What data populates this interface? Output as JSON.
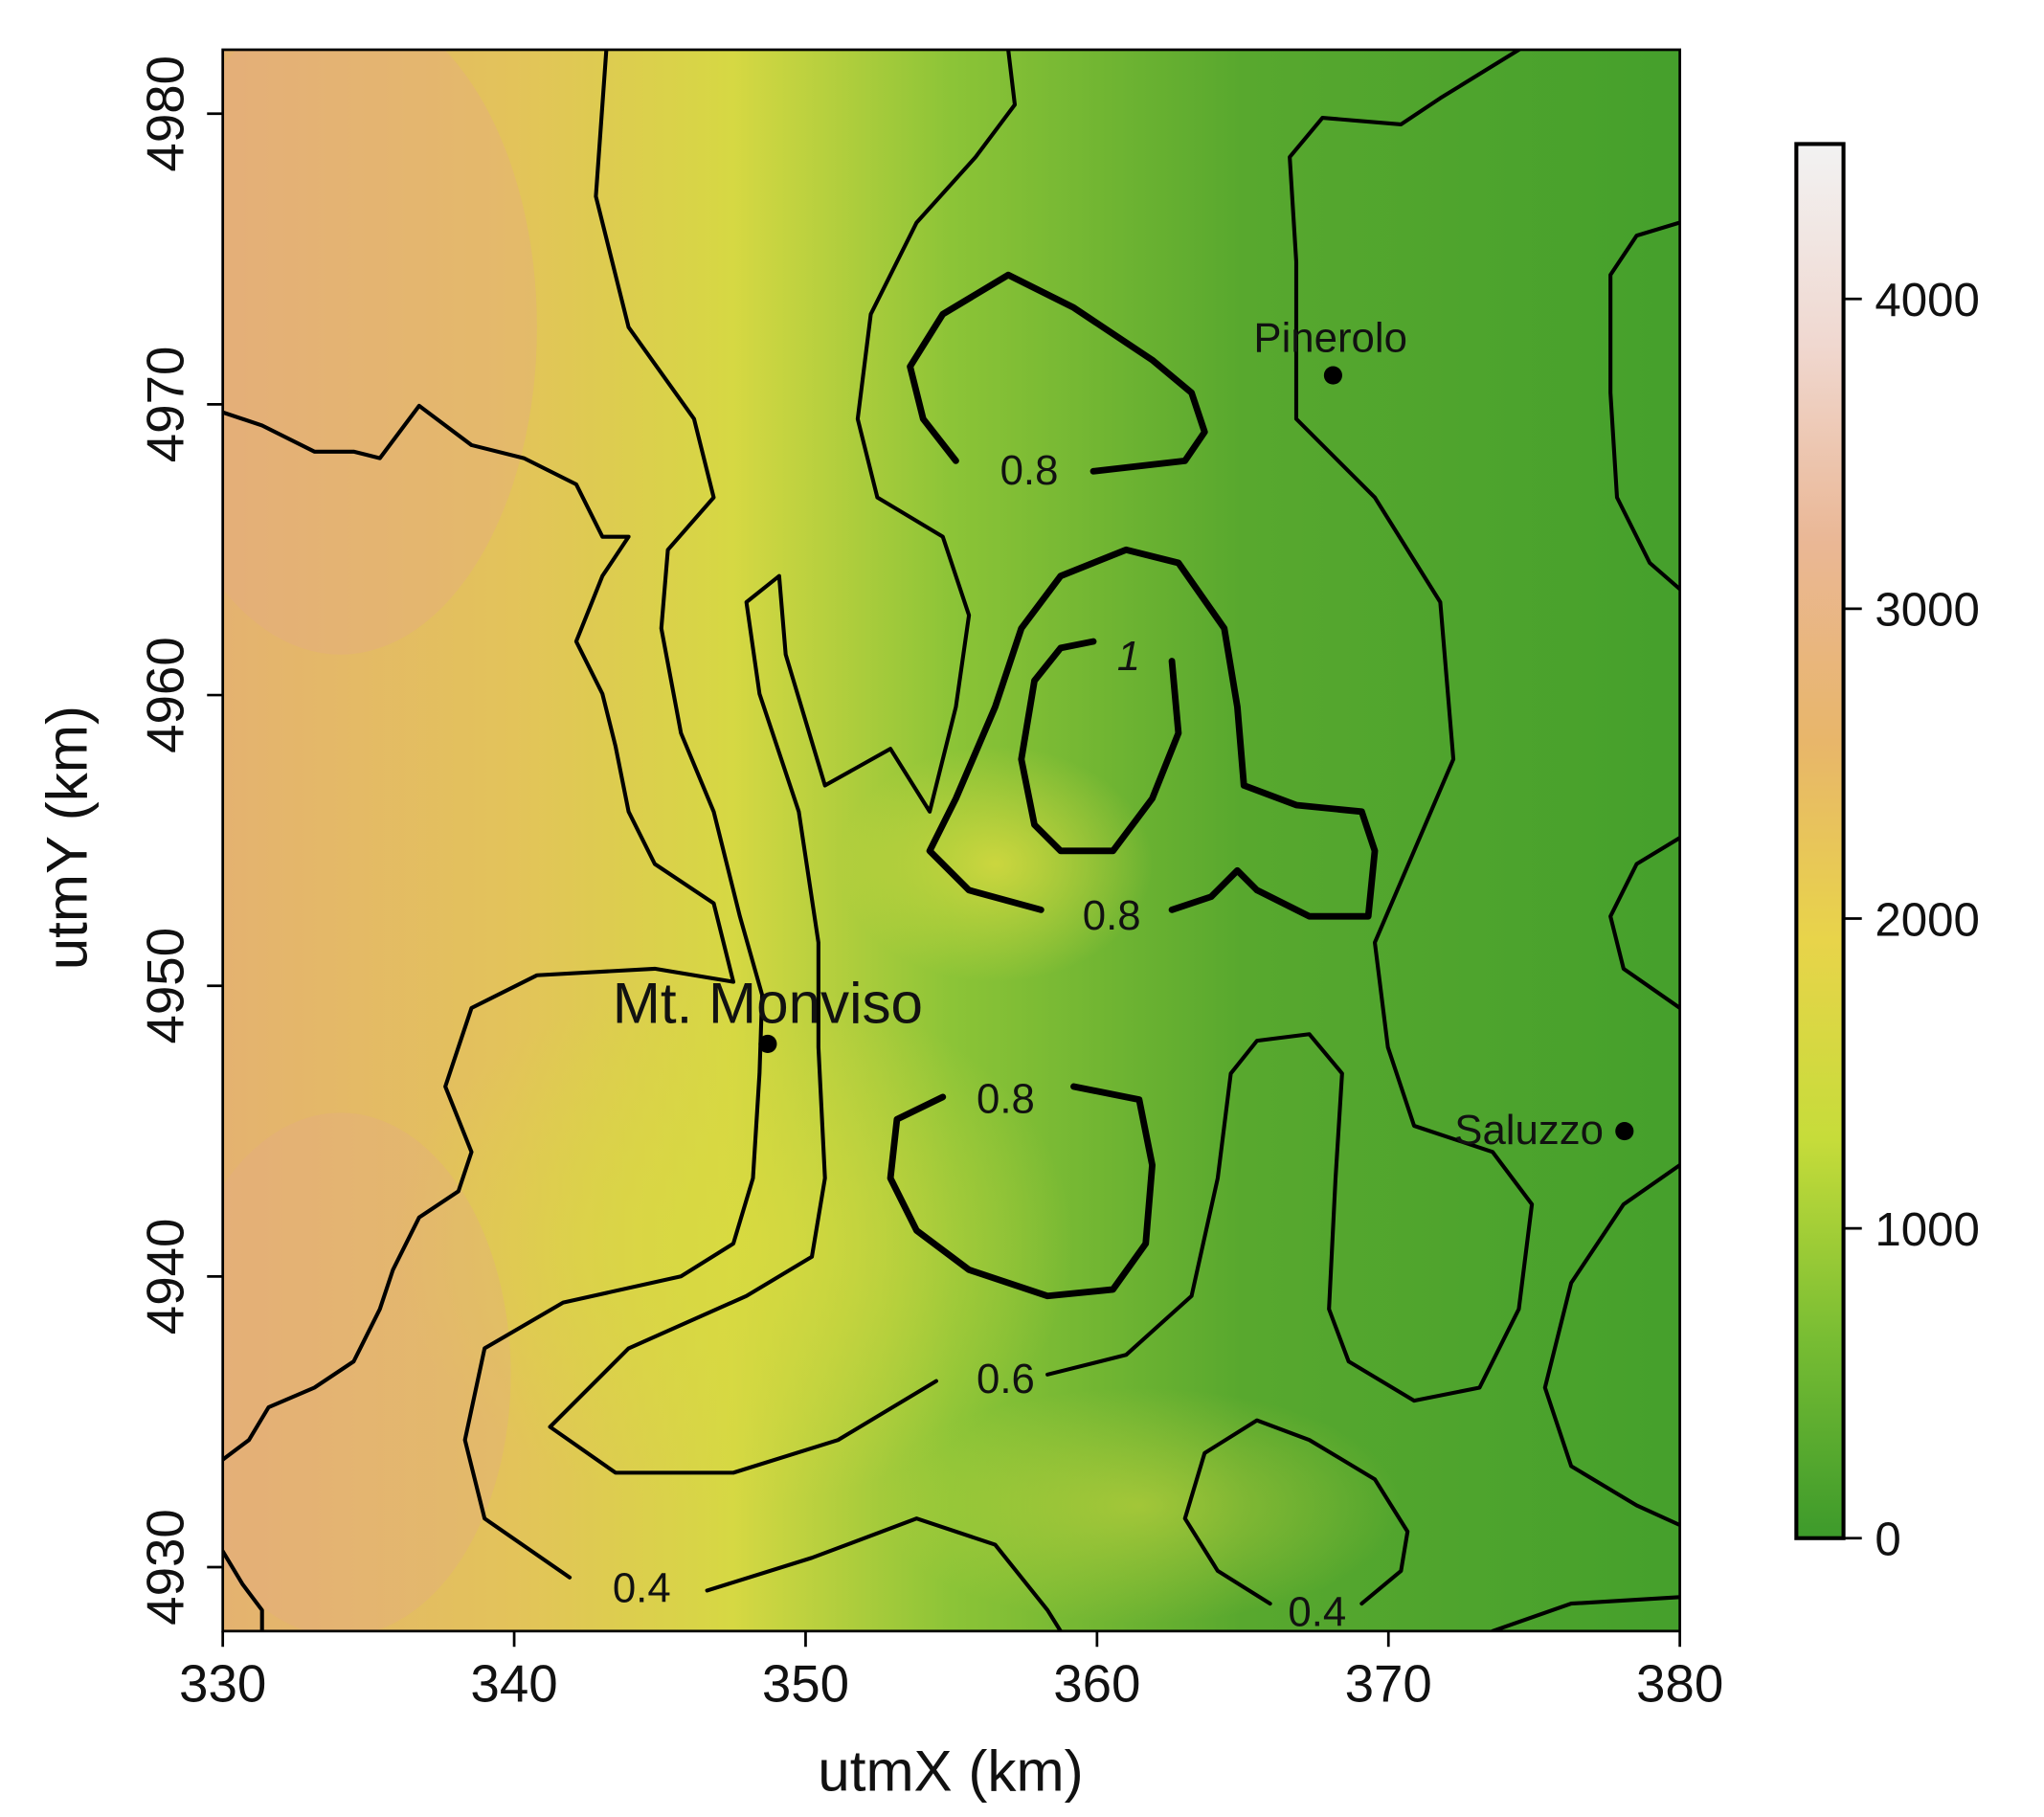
{
  "chart_data": {
    "type": "heatmap",
    "x_label": "utmX (km)",
    "y_label": "utmY (km)",
    "xlim": [
      330,
      380
    ],
    "xticks": [
      330,
      340,
      350,
      360,
      370,
      380
    ],
    "ylim": [
      4927.8,
      4982.2
    ],
    "yticks": [
      4930,
      4940,
      4950,
      4960,
      4970,
      4980
    ],
    "colorbar": {
      "lim": [
        0,
        4500
      ],
      "ticks": [
        0,
        1000,
        2000,
        3000,
        4000
      ],
      "colors": [
        "#3d9a2b",
        "#78bd33",
        "#c6dc3a",
        "#e8d44a",
        "#e8b66a",
        "#eab795",
        "#f0d8d0",
        "#f2f2f2"
      ]
    },
    "contour_labels": [
      "0.8",
      "1",
      "0.8",
      "0.8",
      "0.6",
      "0.4",
      "0.4"
    ],
    "points": [
      {
        "label": "Pinerolo",
        "x": 368.1,
        "y": 4971
      },
      {
        "label": "Mt. Monviso",
        "x": 348.7,
        "y": 4948
      },
      {
        "label": "Saluzzo",
        "x": 378.1,
        "y": 4945
      }
    ]
  }
}
